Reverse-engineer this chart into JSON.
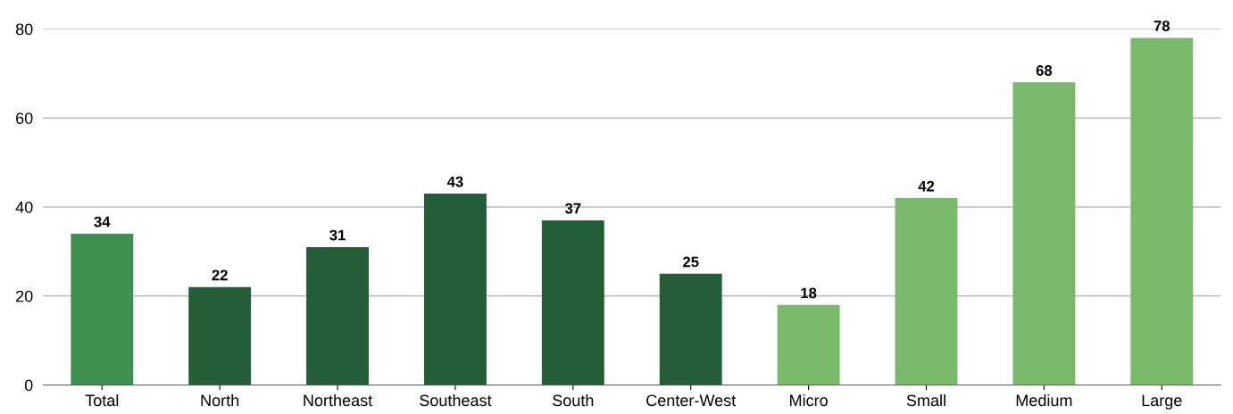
{
  "chart_data": {
    "type": "bar",
    "categories": [
      "Total",
      "North",
      "Northeast",
      "Southeast",
      "South",
      "Center-West",
      "Micro",
      "Small",
      "Medium",
      "Large"
    ],
    "values": [
      34,
      22,
      31,
      43,
      37,
      25,
      18,
      42,
      68,
      78
    ],
    "colors": [
      "#3f8f4f",
      "#245e37",
      "#245e37",
      "#245e37",
      "#245e37",
      "#245e37",
      "#78b96a",
      "#78b96a",
      "#78b96a",
      "#78b96a"
    ],
    "ylim": [
      0,
      80
    ],
    "yticks": [
      0,
      20,
      40,
      60,
      80
    ],
    "grid": "y",
    "data_labels": true
  }
}
